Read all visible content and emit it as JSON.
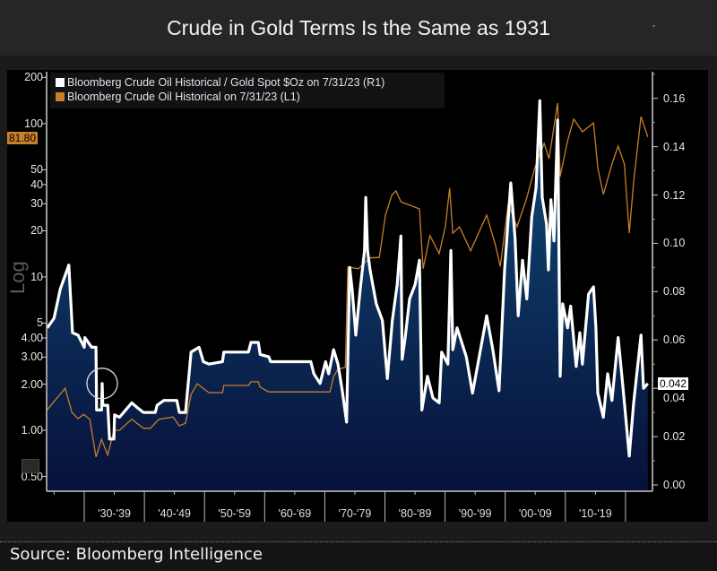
{
  "header": {
    "title": "Crude in Gold Terms Is the Same as 1931"
  },
  "footer": {
    "source": "Source: Bloomberg Intelligence"
  },
  "chart_data": {
    "type": "line",
    "title": "Crude in Gold Terms Is the Same as 1931",
    "legend_placement": "top-left",
    "grid": false,
    "x_categories": [
      "'30-'39",
      "'40-'49",
      "'50-'59",
      "'60-'69",
      "'70-'79",
      "'80-'89",
      "'90-'99",
      "'00-'09",
      "'10-'19"
    ],
    "left_axis": {
      "scale": "log",
      "label": "Log",
      "range": [
        0.45,
        220
      ],
      "ticks": [
        "200",
        "100",
        "50",
        "40",
        "30",
        "20",
        "10",
        "5",
        "4.00",
        "3.00",
        "2.00",
        "1.00",
        "0.50"
      ],
      "last_value": "81.80"
    },
    "right_axis": {
      "scale": "linear",
      "range": [
        0,
        0.165
      ],
      "ticks": [
        "0.16",
        "0.14",
        "0.12",
        "0.10",
        "0.08",
        "0.06",
        "0.04",
        "0.02",
        "0.00"
      ],
      "last_value": "0.042"
    },
    "annotation": {
      "type": "circle",
      "at": [
        1935.0,
        0.042
      ]
    },
    "series": [
      {
        "name": "Bloomberg Crude Oil Historical / Gold Spot $Oz on 7/31/23 (R1)",
        "axis": "right",
        "color": "#ffffff",
        "fill": [
          "#104d7a",
          "#07113a"
        ],
        "points": [
          [
            1926.1,
            0.065
          ],
          [
            1927.2,
            0.069
          ],
          [
            1928.2,
            0.081
          ],
          [
            1929.6,
            0.091
          ],
          [
            1930.2,
            0.063
          ],
          [
            1931.1,
            0.062
          ],
          [
            1932.1,
            0.057
          ],
          [
            1932.2,
            0.061
          ],
          [
            1933.3,
            0.057
          ],
          [
            1934.0,
            0.057
          ],
          [
            1934.1,
            0.031
          ],
          [
            1934.9,
            0.031
          ],
          [
            1935.0,
            0.042
          ],
          [
            1935.1,
            0.033
          ],
          [
            1935.9,
            0.033
          ],
          [
            1936.2,
            0.019
          ],
          [
            1936.9,
            0.019
          ],
          [
            1937.0,
            0.029
          ],
          [
            1937.8,
            0.028
          ],
          [
            1938.8,
            0.031
          ],
          [
            1939.8,
            0.034
          ],
          [
            1940.7,
            0.032
          ],
          [
            1941.7,
            0.03
          ],
          [
            1943.6,
            0.03
          ],
          [
            1943.9,
            0.033
          ],
          [
            1945.0,
            0.035
          ],
          [
            1947.1,
            0.035
          ],
          [
            1947.5,
            0.03
          ],
          [
            1948.5,
            0.03
          ],
          [
            1949.4,
            0.055
          ],
          [
            1950.7,
            0.057
          ],
          [
            1951.4,
            0.051
          ],
          [
            1952.3,
            0.05
          ],
          [
            1954.5,
            0.051
          ],
          [
            1954.7,
            0.055
          ],
          [
            1958.7,
            0.055
          ],
          [
            1959.1,
            0.059
          ],
          [
            1960.3,
            0.059
          ],
          [
            1960.6,
            0.054
          ],
          [
            1962.0,
            0.053
          ],
          [
            1962.3,
            0.051
          ],
          [
            1968.8,
            0.051
          ],
          [
            1969.3,
            0.046
          ],
          [
            1970.3,
            0.042
          ],
          [
            1971.2,
            0.051
          ],
          [
            1971.7,
            0.046
          ],
          [
            1972.5,
            0.056
          ],
          [
            1973.2,
            0.05
          ],
          [
            1973.9,
            0.039
          ],
          [
            1974.6,
            0.026
          ],
          [
            1975.1,
            0.09
          ],
          [
            1975.5,
            0.081
          ],
          [
            1976.1,
            0.062
          ],
          [
            1976.8,
            0.081
          ],
          [
            1977.5,
            0.097
          ],
          [
            1977.7,
            0.119
          ],
          [
            1978.0,
            0.097
          ],
          [
            1978.4,
            0.089
          ],
          [
            1979.4,
            0.075
          ],
          [
            1980.4,
            0.068
          ],
          [
            1981.2,
            0.044
          ],
          [
            1982.0,
            0.068
          ],
          [
            1982.8,
            0.083
          ],
          [
            1983.4,
            0.103
          ],
          [
            1983.6,
            0.052
          ],
          [
            1984.1,
            0.061
          ],
          [
            1984.8,
            0.077
          ],
          [
            1985.7,
            0.083
          ],
          [
            1986.4,
            0.093
          ],
          [
            1986.8,
            0.031
          ],
          [
            1987.7,
            0.045
          ],
          [
            1988.6,
            0.036
          ],
          [
            1989.6,
            0.034
          ],
          [
            1990.0,
            0.055
          ],
          [
            1991.0,
            0.05
          ],
          [
            1991.5,
            0.097
          ],
          [
            1991.8,
            0.056
          ],
          [
            1992.5,
            0.065
          ],
          [
            1994.0,
            0.053
          ],
          [
            1995.0,
            0.038
          ],
          [
            1995.8,
            0.049
          ],
          [
            1997.3,
            0.07
          ],
          [
            1998.3,
            0.056
          ],
          [
            1999.3,
            0.039
          ],
          [
            2000.2,
            0.089
          ],
          [
            2001.2,
            0.125
          ],
          [
            2001.9,
            0.102
          ],
          [
            2002.4,
            0.07
          ],
          [
            2003.1,
            0.093
          ],
          [
            2003.8,
            0.077
          ],
          [
            2004.6,
            0.111
          ],
          [
            2005.3,
            0.123
          ],
          [
            2005.9,
            0.159
          ],
          [
            2006.3,
            0.119
          ],
          [
            2007.0,
            0.108
          ],
          [
            2007.3,
            0.089
          ],
          [
            2007.7,
            0.118
          ],
          [
            2008.2,
            0.101
          ],
          [
            2008.8,
            0.151
          ],
          [
            2009.2,
            0.045
          ],
          [
            2009.6,
            0.075
          ],
          [
            2010.4,
            0.065
          ],
          [
            2010.9,
            0.074
          ],
          [
            2011.8,
            0.049
          ],
          [
            2012.4,
            0.063
          ],
          [
            2012.8,
            0.05
          ],
          [
            2013.8,
            0.079
          ],
          [
            2014.6,
            0.082
          ],
          [
            2015.0,
            0.065
          ],
          [
            2015.3,
            0.038
          ],
          [
            2016.2,
            0.028
          ],
          [
            2016.9,
            0.046
          ],
          [
            2017.6,
            0.035
          ],
          [
            2018.6,
            0.061
          ],
          [
            2019.4,
            0.04
          ],
          [
            2020.4,
            0.012
          ],
          [
            2021.1,
            0.034
          ],
          [
            2022.3,
            0.062
          ],
          [
            2022.7,
            0.04
          ],
          [
            2023.4,
            0.042
          ]
        ]
      },
      {
        "name": "Bloomberg Crude Oil Historical on 7/31/23 (L1)",
        "axis": "left",
        "color": "#c87f2a",
        "points": [
          [
            1926.1,
            1.36
          ],
          [
            1929.0,
            1.88
          ],
          [
            1930.1,
            1.31
          ],
          [
            1931.1,
            1.19
          ],
          [
            1932.0,
            1.27
          ],
          [
            1933.0,
            1.18
          ],
          [
            1934.0,
            0.67
          ],
          [
            1934.9,
            0.87
          ],
          [
            1935.9,
            0.69
          ],
          [
            1936.9,
            1.0
          ],
          [
            1937.8,
            1.0
          ],
          [
            1939.8,
            1.18
          ],
          [
            1941.7,
            1.03
          ],
          [
            1942.8,
            1.03
          ],
          [
            1944.2,
            1.18
          ],
          [
            1946.5,
            1.22
          ],
          [
            1947.5,
            1.07
          ],
          [
            1948.5,
            1.11
          ],
          [
            1949.4,
            1.71
          ],
          [
            1950.4,
            2.01
          ],
          [
            1952.3,
            1.76
          ],
          [
            1954.5,
            1.76
          ],
          [
            1954.7,
            1.96
          ],
          [
            1958.7,
            1.96
          ],
          [
            1959.1,
            2.07
          ],
          [
            1960.3,
            2.07
          ],
          [
            1960.6,
            1.91
          ],
          [
            1962.0,
            1.78
          ],
          [
            1971.9,
            1.78
          ],
          [
            1972.5,
            2.24
          ],
          [
            1973.2,
            2.5
          ],
          [
            1974.4,
            2.57
          ],
          [
            1974.8,
            11.6
          ],
          [
            1976.5,
            11.3
          ],
          [
            1978.4,
            13.3
          ],
          [
            1979.9,
            13.4
          ],
          [
            1980.9,
            25.3
          ],
          [
            1981.9,
            34.0
          ],
          [
            1982.6,
            36.4
          ],
          [
            1983.4,
            30.9
          ],
          [
            1986.4,
            27.8
          ],
          [
            1987.0,
            11.3
          ],
          [
            1988.1,
            18.6
          ],
          [
            1989.6,
            14.2
          ],
          [
            1990.6,
            21.2
          ],
          [
            1991.3,
            37.9
          ],
          [
            1991.8,
            19.3
          ],
          [
            1992.9,
            21.2
          ],
          [
            1994.7,
            14.8
          ],
          [
            1995.8,
            18.6
          ],
          [
            1997.3,
            25.3
          ],
          [
            1998.7,
            16.2
          ],
          [
            1999.5,
            11.7
          ],
          [
            2000.8,
            30.1
          ],
          [
            2002.2,
            21.2
          ],
          [
            2003.7,
            31.8
          ],
          [
            2005.1,
            51.6
          ],
          [
            2006.6,
            74.2
          ],
          [
            2007.4,
            59.0
          ],
          [
            2008.8,
            136
          ],
          [
            2009.2,
            45.1
          ],
          [
            2010.4,
            77.3
          ],
          [
            2011.4,
            107
          ],
          [
            2012.8,
            88.4
          ],
          [
            2014.6,
            101
          ],
          [
            2015.3,
            51.6
          ],
          [
            2016.2,
            34.5
          ],
          [
            2017.6,
            54.5
          ],
          [
            2018.6,
            71.3
          ],
          [
            2019.6,
            54.5
          ],
          [
            2020.4,
            19.3
          ],
          [
            2021.1,
            41.6
          ],
          [
            2022.3,
            111
          ],
          [
            2023.4,
            81.8
          ]
        ]
      }
    ]
  }
}
